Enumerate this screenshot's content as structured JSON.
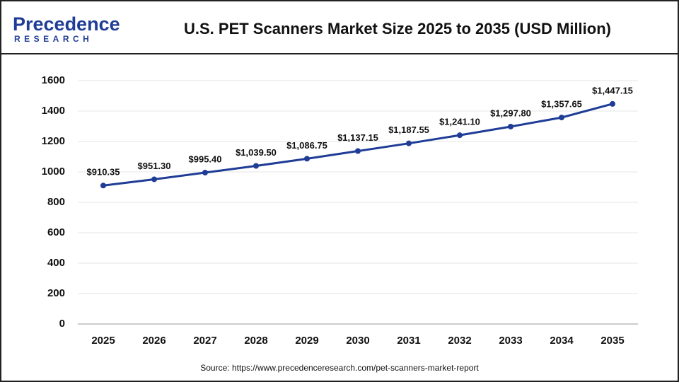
{
  "logo": {
    "name": "Precedence",
    "tagline": "RESEARCH"
  },
  "chart_data": {
    "type": "line",
    "title": "U.S. PET Scanners Market Size 2025 to 2035 (USD Million)",
    "source": "Source: https://www.precedenceresearch.com/pet-scanners-market-report",
    "categories": [
      "2025",
      "2026",
      "2027",
      "2028",
      "2029",
      "2030",
      "2031",
      "2032",
      "2033",
      "2034",
      "2035"
    ],
    "values": [
      910.35,
      951.3,
      995.4,
      1039.5,
      1086.75,
      1137.15,
      1187.55,
      1241.1,
      1297.8,
      1357.65,
      1447.15
    ],
    "value_labels": [
      "$910.35",
      "$951.30",
      "$995.40",
      "$1,039.50",
      "$1,086.75",
      "$1,137.15",
      "$1,187.55",
      "$1,241.10",
      "$1,297.80",
      "$1,357.65",
      "$1,447.15"
    ],
    "color": "#1f3c96",
    "ylim": [
      0,
      1600
    ],
    "yticks": [
      0,
      200,
      400,
      600,
      800,
      1000,
      1200,
      1400,
      1600
    ],
    "grid": true
  }
}
